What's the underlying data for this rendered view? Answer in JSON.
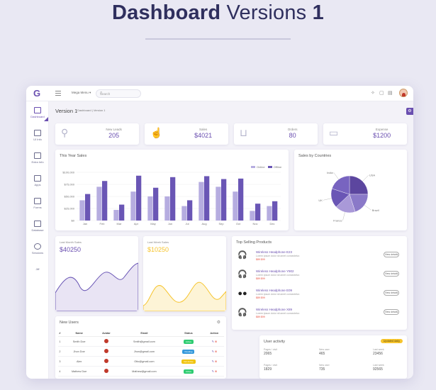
{
  "headline": {
    "bold": "Dashboard",
    "light": "Versions",
    "number": "1"
  },
  "topbar": {
    "logo": "G",
    "mega_menu": "Mega Menu",
    "search_placeholder": "Search"
  },
  "sidebar": {
    "items": [
      {
        "label": "Dashboard",
        "icon": "bar-chart-icon"
      },
      {
        "label": "UI Info",
        "icon": "document-icon"
      },
      {
        "label": "Extra Info",
        "icon": "monitor-icon"
      },
      {
        "label": "Apps",
        "icon": "desktop-icon"
      },
      {
        "label": "Forms",
        "icon": "clipboard-icon"
      },
      {
        "label": "Database",
        "icon": "database-icon"
      },
      {
        "label": "Sessions",
        "icon": "user-icon"
      },
      {
        "label": "Jiff",
        "icon": "more-icon"
      }
    ]
  },
  "page": {
    "title": "Version 1",
    "breadcrumb": "Dashboard | Version 1"
  },
  "stats": [
    {
      "label": "New Leads",
      "value": "205",
      "icon": "user-search-icon"
    },
    {
      "label": "Sales",
      "value": "$4021",
      "icon": "hand-money-icon"
    },
    {
      "label": "Orders",
      "value": "80",
      "icon": "basket-icon"
    },
    {
      "label": "Expense",
      "value": "$1200",
      "icon": "cash-icon"
    }
  ],
  "colors": {
    "accent": "#6a4fb0",
    "online": "#b6ade0",
    "offline": "#6a56b5",
    "yellow": "#f6c42d"
  },
  "sales_chart": {
    "title": "This Year Sales",
    "legend": [
      "Online",
      "Offline"
    ]
  },
  "countries_chart": {
    "title": "Sales by Countries"
  },
  "chart_data": [
    {
      "type": "bar",
      "title": "This Year Sales",
      "categories": [
        "Jan",
        "Feb",
        "Mar",
        "Apr",
        "May",
        "Jun",
        "Jul",
        "Aug",
        "Sep",
        "Oct",
        "Nov",
        "Dec"
      ],
      "series": [
        {
          "name": "Online",
          "values": [
            42000,
            70000,
            22000,
            60000,
            50000,
            50000,
            30000,
            80000,
            70000,
            60000,
            20000,
            30000
          ]
        },
        {
          "name": "Offline",
          "values": [
            55000,
            82000,
            33000,
            93000,
            68000,
            90000,
            42000,
            92000,
            86000,
            87000,
            35000,
            40000
          ]
        }
      ],
      "yticks": [
        "$0",
        "$25,000",
        "$50,000",
        "$75,000",
        "$100,000"
      ],
      "ylim": [
        0,
        100000
      ],
      "grid": true,
      "legend_position": "top-right"
    },
    {
      "type": "pie",
      "title": "Sales by Countries",
      "slices": [
        {
          "label": "USA",
          "value": 25
        },
        {
          "label": "Brazil",
          "value": 20
        },
        {
          "label": "France",
          "value": 18
        },
        {
          "label": "UK",
          "value": 17
        },
        {
          "label": "India",
          "value": 20
        }
      ]
    }
  ],
  "last_month": {
    "label": "Last Month Sales",
    "value": "$40250"
  },
  "last_week": {
    "label": "Last Week Sales",
    "value": "$10250"
  },
  "top_products": {
    "title": "Top Selling Products",
    "items": [
      {
        "name": "Wireless Headphone E23",
        "desc": "Lorem ipsum dolor sit amet consectetur.",
        "price": "$89 $99",
        "button": "View details",
        "icon": "headphone-icon"
      },
      {
        "name": "Wireless Headphone Y902",
        "desc": "Lorem ipsum dolor sit amet consectetur.",
        "price": "$89 $99",
        "button": "View details",
        "icon": "headphone-icon"
      },
      {
        "name": "Wireless Headphone E09",
        "desc": "Lorem ipsum dolor sit amet consectetur.",
        "price": "$89 $99",
        "button": "View details",
        "icon": "earbuds-icon"
      },
      {
        "name": "Wireless Headphone X89",
        "desc": "Lorem ipsum dolor sit amet consectetur.",
        "price": "$89 $99",
        "button": "View details",
        "icon": "headphone-icon"
      }
    ]
  },
  "users": {
    "title": "New Users",
    "columns": [
      "#",
      "Name",
      "Avatar",
      "Email",
      "Status",
      "Action"
    ],
    "rows": [
      {
        "n": "1",
        "name": "Smith Doe",
        "email": "Smith@gmail.com",
        "status": "Active",
        "status_color": "#2ecc71"
      },
      {
        "n": "2",
        "name": "Jhon Doe",
        "email": "Jhon@gmail.com",
        "status": "Pending",
        "status_color": "#3498db"
      },
      {
        "n": "3",
        "name": "Alex",
        "email": "Otto@gmail.com",
        "status": "Not Active",
        "status_color": "#f1c40f"
      },
      {
        "n": "4",
        "name": "Mathew Doe",
        "email": "Mathew@gmail.com",
        "status": "Active",
        "status_color": "#2ecc71"
      }
    ]
  },
  "user_activity": {
    "title": "User activity",
    "badge": "Updated daily",
    "cells": [
      {
        "label": "Pages / visit",
        "value": "2065"
      },
      {
        "label": "New user",
        "value": "465"
      },
      {
        "label": "Last week",
        "value": "23456"
      },
      {
        "label": "Pages / visit",
        "value": "1829"
      },
      {
        "label": "New user",
        "value": "735"
      },
      {
        "label": "Last week",
        "value": "92565"
      }
    ]
  },
  "charts": {
    "area_month": "Last Month Sales",
    "area_week": "Last Week Sales"
  }
}
